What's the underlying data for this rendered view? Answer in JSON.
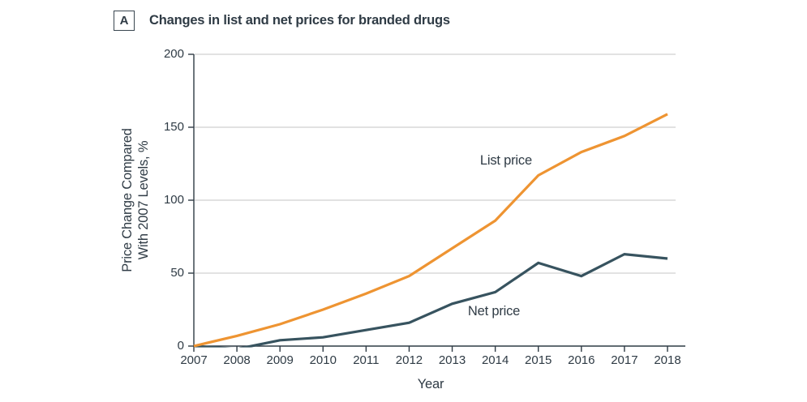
{
  "panel": {
    "label": "A",
    "title": "Changes in list and net prices for branded drugs"
  },
  "chart_data": {
    "type": "line",
    "title": "Changes in list and net prices for branded drugs",
    "xlabel": "Year",
    "ylabel": "Price Change Compared With 2007 Levels, %",
    "ylabel_lines": [
      "Price Change Compared",
      "With 2007 Levels, %"
    ],
    "x": [
      2007,
      2008,
      2009,
      2010,
      2011,
      2012,
      2013,
      2014,
      2015,
      2016,
      2017,
      2018
    ],
    "xtick_labels": [
      "2007",
      "2008",
      "2009",
      "2010",
      "2011",
      "2012",
      "2013",
      "2014",
      "2015",
      "2016",
      "2017",
      "2018"
    ],
    "yticks": [
      0,
      50,
      100,
      150,
      200
    ],
    "xlim": [
      2007,
      2018
    ],
    "ylim": [
      0,
      200
    ],
    "grid": "horizontal",
    "legend_position": "inline-annotations",
    "series": [
      {
        "name": "List price",
        "color": "#EE9432",
        "values": [
          0,
          7,
          15,
          25,
          36,
          48,
          67,
          86,
          117,
          133,
          144,
          159
        ]
      },
      {
        "name": "Net price",
        "color": "#37535F",
        "values": [
          0,
          -2,
          4,
          6,
          11,
          16,
          29,
          37,
          57,
          48,
          63,
          60
        ]
      }
    ],
    "annotations": [
      {
        "text": "List price",
        "x": 2014.25,
        "y": 126
      },
      {
        "text": "Net price",
        "x": 2013.97,
        "y": 23
      }
    ],
    "colors": {
      "axis": "#2F3B45",
      "grid": "#D9D9D9",
      "list_price": "#EE9432",
      "net_price": "#37535F"
    }
  }
}
